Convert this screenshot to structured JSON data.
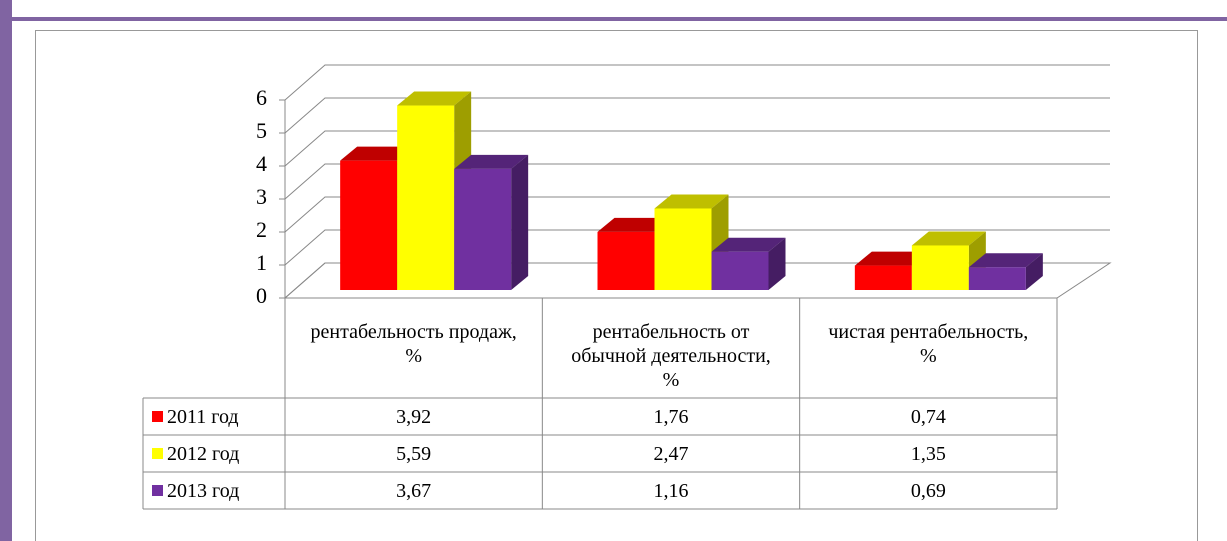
{
  "chart_data": {
    "type": "bar3d",
    "categories": [
      "рентабельность продаж, %",
      "рентабельность от обычной деятельности, %",
      "чистая рентабельность, %"
    ],
    "series": [
      {
        "name": "2011 год",
        "color": "#ff0000",
        "values": [
          3.92,
          1.76,
          0.74
        ],
        "value_labels": [
          "3,92",
          "1,76",
          "0,74"
        ]
      },
      {
        "name": "2012 год",
        "color": "#ffff00",
        "values": [
          5.59,
          2.47,
          1.35
        ],
        "value_labels": [
          "5,59",
          "2,47",
          "1,35"
        ]
      },
      {
        "name": "2013 год",
        "color": "#7030a0",
        "values": [
          3.67,
          1.16,
          0.69
        ],
        "value_labels": [
          "3,67",
          "1,16",
          "0,69"
        ]
      }
    ],
    "ylim": [
      0,
      6
    ],
    "yticks": [
      0,
      1,
      2,
      3,
      4,
      5,
      6
    ],
    "grid": true
  }
}
